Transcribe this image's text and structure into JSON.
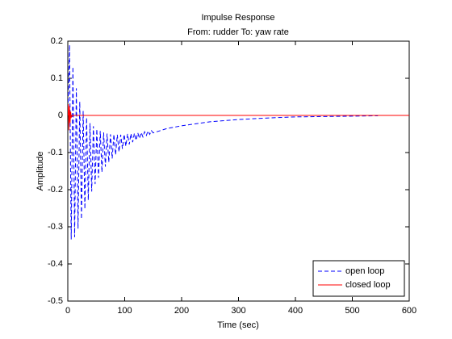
{
  "chart_data": {
    "type": "line",
    "title": "Impulse Response",
    "subtitle": "From: rudder  To: yaw rate",
    "x_label": "Time (sec)",
    "y_label": "Amplitude",
    "xlim": [
      0,
      600
    ],
    "xticks": [
      0,
      100,
      200,
      300,
      400,
      500,
      600
    ],
    "ylim": [
      -0.5,
      0.2
    ],
    "yticks": [
      0.2,
      0.1,
      0,
      -0.1,
      -0.2,
      -0.3,
      -0.4,
      -0.5
    ],
    "legend": "lower right",
    "series": [
      {
        "name": "open loop",
        "color": "#0000ff",
        "line_style": "dashed",
        "x": [
          0,
          3,
          6,
          9,
          12,
          15,
          18,
          21,
          24,
          27,
          30,
          33,
          36,
          39,
          42,
          45,
          48,
          51,
          54,
          57,
          60,
          63,
          66,
          69,
          72,
          75,
          78,
          81,
          84,
          87,
          90,
          93,
          96,
          99,
          102,
          105,
          108,
          111,
          114,
          117,
          120,
          123,
          126,
          129,
          132,
          135,
          138,
          141,
          144,
          147,
          150,
          175,
          200,
          250,
          300,
          350,
          400,
          450,
          500,
          545
        ],
        "values": [
          0,
          0.19,
          -0.334,
          0.131,
          -0.328,
          0.073,
          -0.305,
          0.037,
          -0.279,
          0.012,
          -0.252,
          -0.006,
          -0.228,
          -0.021,
          -0.205,
          -0.029,
          -0.185,
          -0.037,
          -0.168,
          -0.042,
          -0.153,
          -0.046,
          -0.138,
          -0.049,
          -0.126,
          -0.051,
          -0.116,
          -0.051,
          -0.106,
          -0.052,
          -0.098,
          -0.052,
          -0.09,
          -0.051,
          -0.083,
          -0.05,
          -0.078,
          -0.049,
          -0.072,
          -0.048,
          -0.067,
          -0.047,
          -0.062,
          -0.046,
          -0.058,
          -0.044,
          -0.054,
          -0.042,
          -0.051,
          -0.041,
          -0.047,
          -0.035,
          -0.028,
          -0.017,
          -0.011,
          -0.007,
          -0.004,
          -0.003,
          -0.002,
          -0.001
        ]
      },
      {
        "name": "closed loop",
        "color": "#ff0000",
        "line_style": "solid",
        "x": [
          0,
          1,
          2,
          3,
          4,
          5,
          6,
          8,
          600
        ],
        "values": [
          0,
          0.03,
          -0.04,
          0.025,
          -0.02,
          0.01,
          -0.005,
          0,
          0
        ]
      }
    ]
  }
}
